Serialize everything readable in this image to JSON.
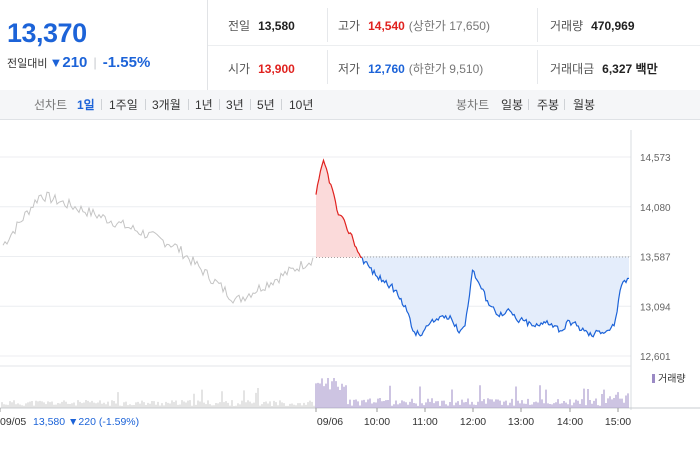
{
  "quote": {
    "price": "13,370",
    "change_label": "전일대비",
    "change_amount": "210",
    "change_pct": "-1.55%"
  },
  "stats": [
    {
      "label": "전일",
      "value": "13,580",
      "tone": "normal"
    },
    {
      "label": "고가",
      "value": "14,540",
      "tone": "red",
      "sub": "(상한가 17,650)"
    },
    {
      "label": "거래량",
      "value": "470,969",
      "tone": "normal"
    },
    {
      "label": "시가",
      "value": "13,900",
      "tone": "red"
    },
    {
      "label": "저가",
      "value": "12,760",
      "tone": "blue",
      "sub": "(하한가 9,510)"
    },
    {
      "label": "거래대금",
      "value": "6,327 백만",
      "tone": "normal"
    }
  ],
  "tabs": {
    "line_label": "선차트",
    "line_items": [
      "1일",
      "1주일",
      "3개월",
      "1년",
      "3년",
      "5년",
      "10년"
    ],
    "active": "1일",
    "candle_label": "봉차트",
    "candle_items": [
      "일봉",
      "주봉",
      "월봉"
    ]
  },
  "chart_data": {
    "type": "line",
    "y_ticks": [
      "14,573",
      "14,080",
      "13,587",
      "13,094",
      "12,601"
    ],
    "y_range": [
      12601,
      14573
    ],
    "reference_price": 13580,
    "volume_legend": "거래량",
    "x_labels": [
      "09/05",
      "09/06",
      "10:00",
      "11:00",
      "12:00",
      "13:00",
      "14:00",
      "15:00"
    ],
    "prev_day_caption": {
      "date": "09/05",
      "price": "13,580",
      "change": "▼220",
      "pct": "(-1.59%)"
    },
    "series": [
      {
        "x": [
          "09:00",
          "09:05",
          "09:10",
          "09:15",
          "09:20",
          "09:25",
          "09:30",
          "09:40",
          "09:50",
          "10:00",
          "10:10",
          "10:20",
          "10:30",
          "10:40",
          "10:50",
          "11:00",
          "11:10",
          "11:20",
          "11:30",
          "11:40",
          "11:50",
          "12:00",
          "12:05",
          "12:10",
          "12:20",
          "12:30",
          "12:40",
          "12:50",
          "13:00",
          "13:10",
          "13:20",
          "13:30",
          "13:40",
          "13:50",
          "14:00",
          "14:10",
          "14:20",
          "14:30",
          "14:40",
          "14:50",
          "15:00",
          "15:10",
          "15:20"
        ],
        "values": [
          14200,
          14540,
          14300,
          14000,
          13900,
          13750,
          13580,
          13500,
          13400,
          13350,
          13300,
          13200,
          13100,
          12850,
          12800,
          12900,
          12950,
          13000,
          13000,
          12850,
          12900,
          13450,
          13300,
          13150,
          13050,
          13000,
          13050,
          12950,
          12950,
          12900,
          12900,
          12950,
          12900,
          12850,
          12950,
          12900,
          12850,
          12800,
          12850,
          12850,
          12900,
          13300,
          13370
        ]
      }
    ],
    "volume_colors": {
      "today": "#9b8ac5",
      "prev": "#c9c9c9"
    }
  },
  "colors": {
    "accent_blue": "#1c63d8",
    "red": "#e0221f",
    "fill_blue": "#e4edfb",
    "fill_red": "#fbdada"
  }
}
